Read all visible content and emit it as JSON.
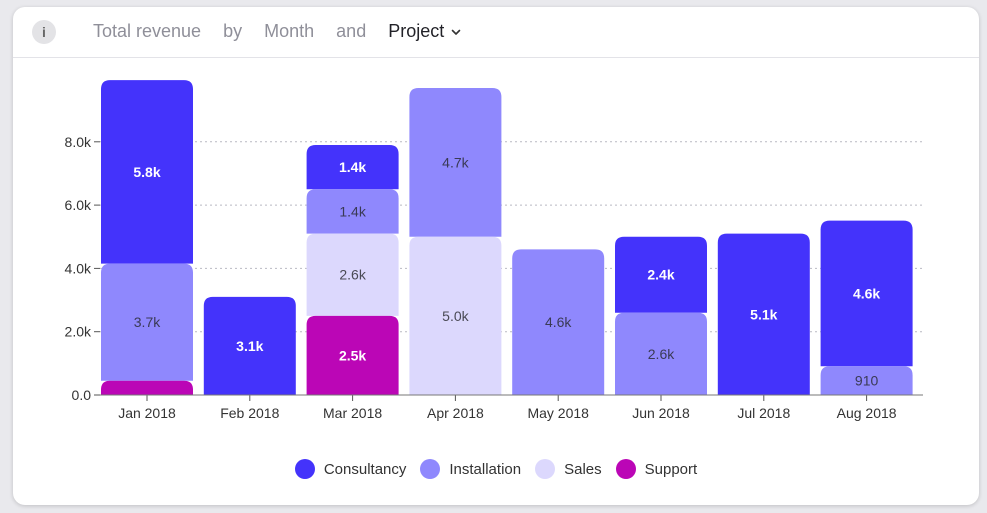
{
  "header": {
    "info_icon": "i",
    "metric": "Total revenue",
    "by_word": "by",
    "dimension": "Month",
    "and_word": "and",
    "breakdown": "Project"
  },
  "colors": {
    "Consultancy": "#4433fb",
    "Installation": "#8f88fd",
    "Sales": "#dcd8fd",
    "Support": "#bb06b6"
  },
  "chart_data": {
    "type": "bar",
    "stacked": true,
    "categories": [
      "Jan 2018",
      "Feb 2018",
      "Mar 2018",
      "Apr 2018",
      "May 2018",
      "Jun 2018",
      "Jul 2018",
      "Aug 2018"
    ],
    "series": [
      {
        "name": "Support",
        "values": [
          450,
          0,
          2500,
          0,
          0,
          0,
          0,
          0
        ],
        "labels": [
          "",
          "",
          "2.5k",
          "",
          "",
          "",
          "",
          ""
        ]
      },
      {
        "name": "Sales",
        "values": [
          0,
          0,
          2600,
          5000,
          0,
          0,
          0,
          0
        ],
        "labels": [
          "",
          "",
          "2.6k",
          "5.0k",
          "",
          "",
          "",
          ""
        ]
      },
      {
        "name": "Installation",
        "values": [
          3700,
          0,
          1400,
          4700,
          4600,
          2600,
          0,
          910
        ],
        "labels": [
          "3.7k",
          "",
          "1.4k",
          "4.7k",
          "4.6k",
          "2.6k",
          "",
          "910"
        ]
      },
      {
        "name": "Consultancy",
        "values": [
          5800,
          3100,
          1400,
          0,
          0,
          2400,
          5100,
          4600
        ],
        "labels": [
          "5.8k",
          "3.1k",
          "1.4k",
          "",
          "",
          "2.4k",
          "5.1k",
          "4.6k"
        ]
      }
    ],
    "yticks": [
      0,
      2000,
      4000,
      6000,
      8000
    ],
    "ytick_labels": [
      "0.0",
      "2.0k",
      "4.0k",
      "6.0k",
      "8.0k"
    ],
    "ylim": [
      0,
      10000
    ],
    "grid": true,
    "legend": [
      "Consultancy",
      "Installation",
      "Sales",
      "Support"
    ],
    "legend_position": "bottom-center"
  }
}
